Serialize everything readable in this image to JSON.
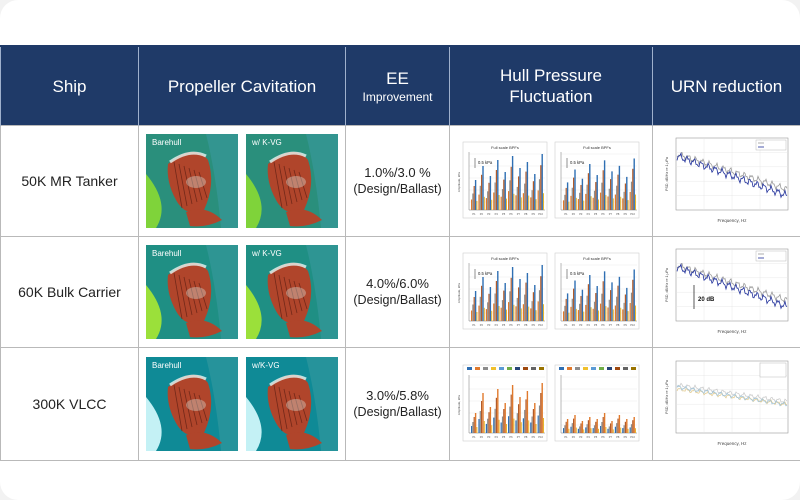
{
  "headers": {
    "ship": "Ship",
    "cavitation": "Propeller Cavitation",
    "ee_main": "EE",
    "ee_sub": "Improvement",
    "hpf_line1": "Hull Pressure",
    "hpf_line2": "Fluctuation",
    "urn": "URN reduction"
  },
  "rows": [
    {
      "ship": "50K MR Tanker",
      "ee_value": "1.0%/3.0 %",
      "ee_note": "(Design/Ballast)",
      "photo_left_label": "Barehull",
      "photo_right_label": "w/ K-VG",
      "hpf_left_title": "Full scale BPFs",
      "hpf_right_title": "Full scale BPFs",
      "hpf_ann_left": "0.5 kPa",
      "hpf_ann_right": "0.5 kPa",
      "urn_xlabel": "Frequency, Hz",
      "urn_ann": "",
      "bg_left": "#2a8f7c",
      "bg_right": "#2a8f7c",
      "sky": "#7fd33a"
    },
    {
      "ship": "60K Bulk Carrier",
      "ee_value": "4.0%/6.0%",
      "ee_note": "(Design/Ballast)",
      "photo_left_label": "Barehull",
      "photo_right_label": "w/ K-VG",
      "hpf_left_title": "Full scale BPFs",
      "hpf_right_title": "Full scale BPFs",
      "hpf_ann_left": "0.5 kPa",
      "hpf_ann_right": "0.5 kPa",
      "urn_xlabel": "Frequency, Hz",
      "urn_ann": "20 dB",
      "bg_left": "#1f8f84",
      "bg_right": "#1f8f84",
      "sky": "#9be03a"
    },
    {
      "ship": "300K VLCC",
      "ee_value": "3.0%/5.8%",
      "ee_note": "(Design/Ballast)",
      "photo_left_label": "Barehull",
      "photo_right_label": "w/K-VG",
      "hpf_left_title": "",
      "hpf_right_title": "",
      "hpf_ann_left": "",
      "hpf_ann_right": "",
      "urn_xlabel": "Frequency, Hz",
      "urn_ann": "",
      "bg_left": "#0f8a96",
      "bg_right": "#0f8a96",
      "sky": "#c4f1f5"
    }
  ],
  "colors": {
    "header_bg": "#1f3a68",
    "blade": "#b0452b",
    "bar_blue": "#2f6fb3",
    "bar_orange": "#e0792c",
    "bar_gray": "#8c8c8c",
    "urn_line_blue": "#1f2f9a",
    "urn_line_gray": "#9a9a9a"
  }
}
